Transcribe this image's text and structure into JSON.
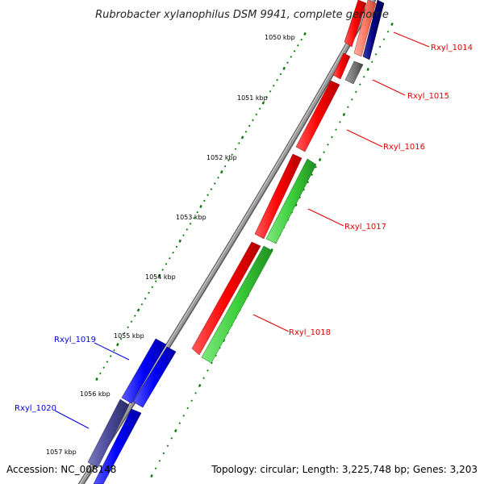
{
  "title": "Rubrobacter xylanophilus DSM 9941, complete genome",
  "footer": {
    "accession": "Accession: NC_008148",
    "summary": "Topology: circular; Length: 3,225,748 bp; Genes: 3,203"
  },
  "ticks": [
    "1050 kbp",
    "1051 kbp",
    "1052 kbp",
    "1053 kbp",
    "1054 kbp",
    "1055 kbp",
    "1056 kbp",
    "1057 kbp"
  ],
  "genes": [
    {
      "name": "Rxyl_1014",
      "color": "#cc0000"
    },
    {
      "name": "Rxyl_1015",
      "color": "#cc0000"
    },
    {
      "name": "Rxyl_1016",
      "color": "#cc0000"
    },
    {
      "name": "Rxyl_1017",
      "color": "#cc0000"
    },
    {
      "name": "Rxyl_1018",
      "color": "#cc0000"
    },
    {
      "name": "Rxyl_1019",
      "color": "#0000cc"
    },
    {
      "name": "Rxyl_1020",
      "color": "#0000cc"
    }
  ],
  "colors": {
    "backbone": "#8a8a8a",
    "gene_red": "#ff0000",
    "gene_green": "#3ccf3c",
    "gene_blue": "#0000ff",
    "gene_navy": "#000080",
    "gene_gray": "#777777",
    "gene_slate": "#4a4a99",
    "tick_green": "#0a7a0a"
  }
}
